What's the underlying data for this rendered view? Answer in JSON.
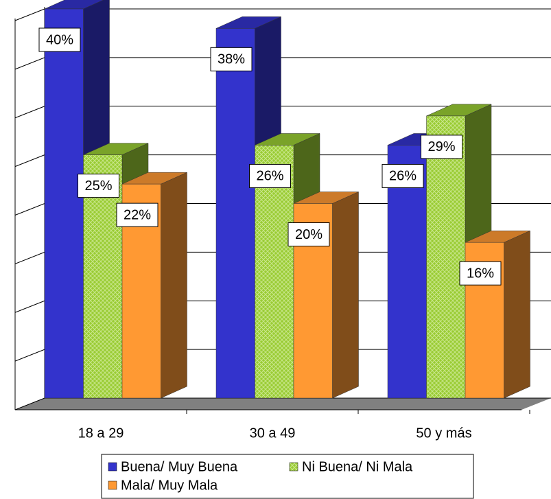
{
  "chart_data": {
    "type": "bar3d",
    "categories": [
      "18 a 29",
      "30 a 49",
      "50 y más"
    ],
    "series": [
      {
        "name": "Buena/ Muy Buena",
        "color": "#3333cc",
        "values": [
          40,
          38,
          26
        ],
        "value_labels": [
          "40%",
          "38%",
          "26%"
        ]
      },
      {
        "name": "Ni Buena/ Ni Mala",
        "color": "#99cc33",
        "values": [
          25,
          26,
          29
        ],
        "value_labels": [
          "25%",
          "26%",
          "29%"
        ]
      },
      {
        "name": "Mala/ Muy Mala",
        "color": "#ff9933",
        "values": [
          22,
          20,
          16
        ],
        "value_labels": [
          "22%",
          "20%",
          "16%"
        ]
      }
    ],
    "ylim": [
      0,
      40
    ],
    "yticks": [
      0,
      5,
      10,
      15,
      20,
      25,
      30,
      35,
      40
    ],
    "grid": true
  }
}
